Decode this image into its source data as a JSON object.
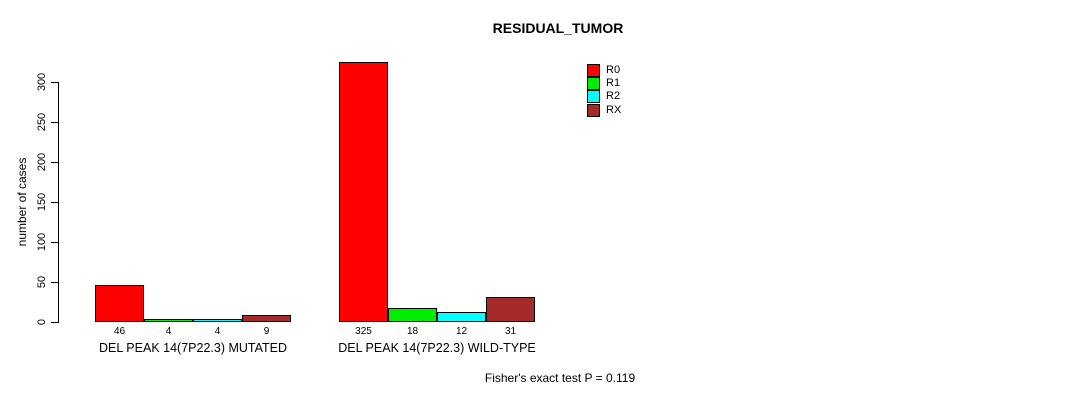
{
  "chart_data": {
    "type": "bar",
    "title": "RESIDUAL_TUMOR",
    "ylabel": "number of cases",
    "xlabel": "",
    "ylim": [
      0,
      325
    ],
    "yticks": [
      0,
      50,
      100,
      150,
      200,
      250,
      300
    ],
    "grid": false,
    "legend_position": "top-right",
    "categories": [
      "DEL PEAK 14(7P22.3) MUTATED",
      "DEL PEAK 14(7P22.3) WILD-TYPE"
    ],
    "series": [
      {
        "name": "R0",
        "color": "#FF0000",
        "values": [
          46,
          325
        ]
      },
      {
        "name": "R1",
        "color": "#00EE00",
        "values": [
          4,
          18
        ]
      },
      {
        "name": "R2",
        "color": "#00FFFF",
        "values": [
          4,
          12
        ]
      },
      {
        "name": "RX",
        "color": "#A52A2A",
        "values": [
          9,
          31
        ]
      }
    ],
    "bar_value_labels_shown": true,
    "annotation": "Fisher's exact test P = 0.119"
  },
  "colors": {
    "background": "#FFFFFF",
    "axis": "#000000",
    "text": "#000000"
  }
}
